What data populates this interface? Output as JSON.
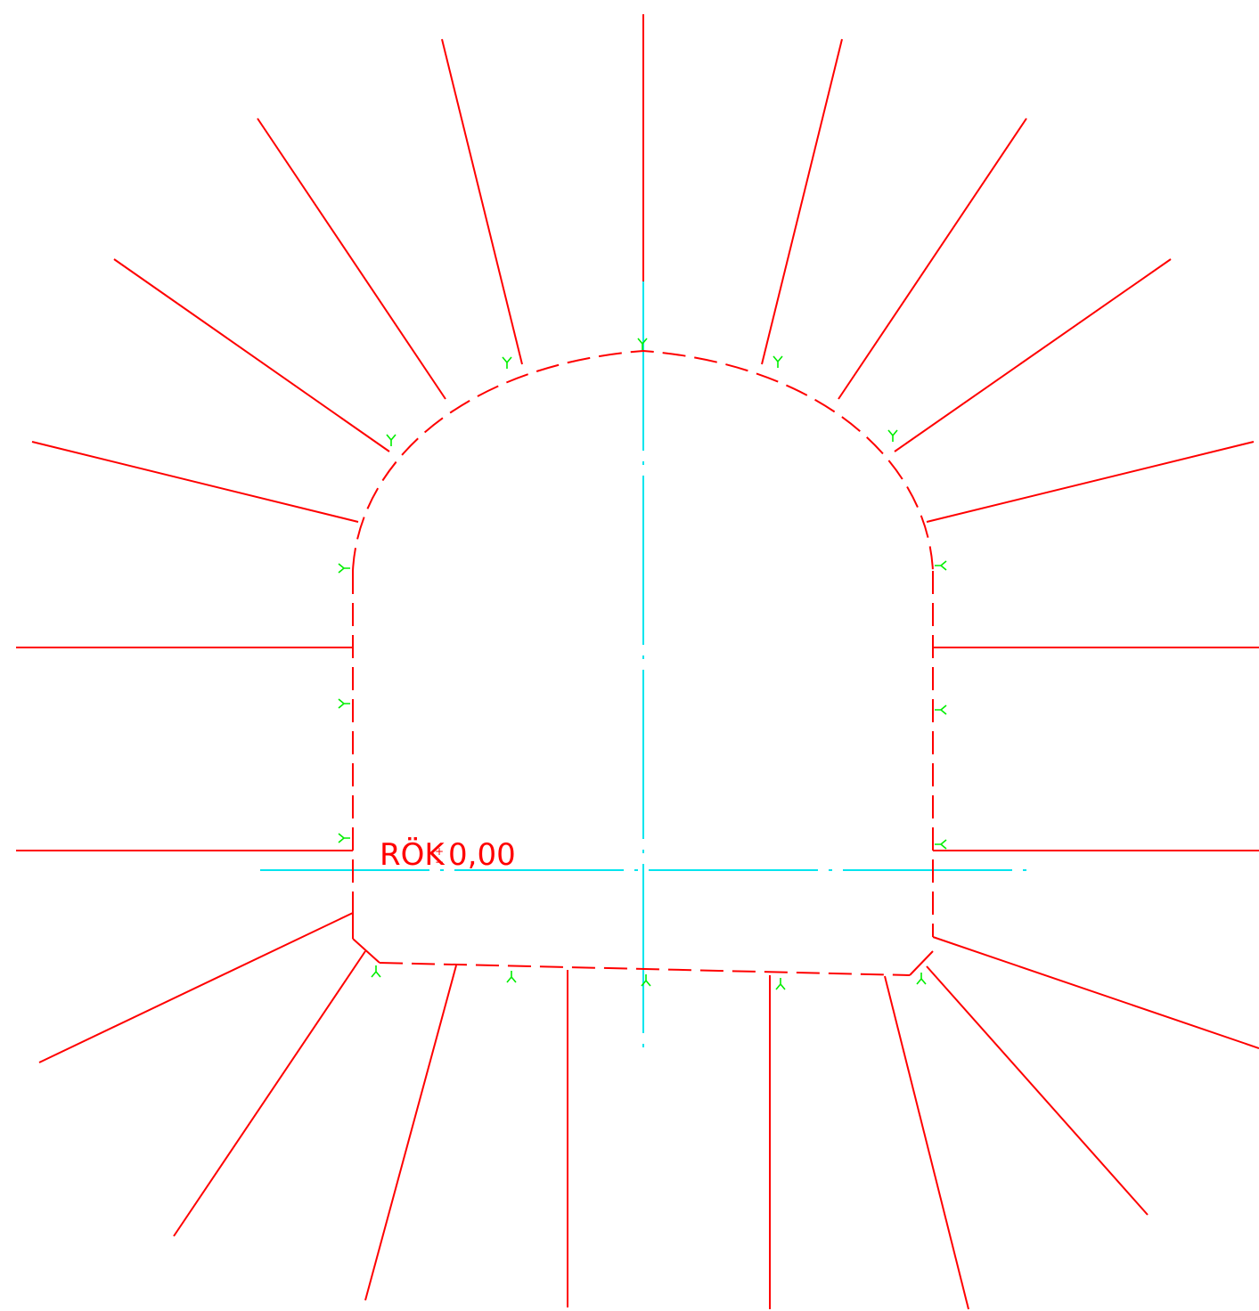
{
  "elevation_label": {
    "prefix": "RÖK",
    "symbol_top": "+",
    "symbol_bottom": "−",
    "value": "0,00"
  },
  "colors": {
    "background": "#ffffff",
    "rock_bolts": "#ff0000",
    "excavation_profile": "#ff0000",
    "axes": "#00e5ee",
    "bolt_markers": "#00ee00"
  },
  "profile": {
    "line_style": "dashed",
    "shape": "horseshoe with flat invert and chamfered bottom corners"
  },
  "axes": {
    "line_style": "dash-dot",
    "count": 2
  },
  "rock_bolts": {
    "count": 19,
    "marker_symbol": "Y"
  }
}
